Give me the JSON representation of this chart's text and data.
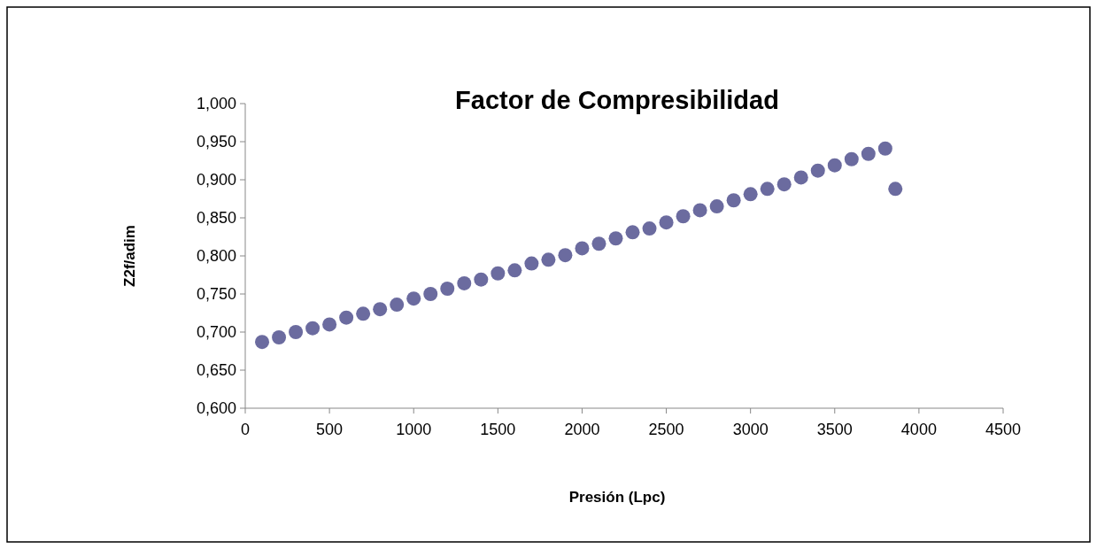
{
  "chart_data": {
    "type": "scatter",
    "title": "Factor de Compresibilidad",
    "xlabel": "Presión (Lpc)",
    "ylabel": "Z2f/adim",
    "x": [
      100,
      200,
      300,
      400,
      500,
      600,
      700,
      800,
      900,
      1000,
      1100,
      1200,
      1300,
      1400,
      1500,
      1600,
      1700,
      1800,
      1900,
      2000,
      2100,
      2200,
      2300,
      2400,
      2500,
      2600,
      2700,
      2800,
      2900,
      3000,
      3100,
      3200,
      3300,
      3400,
      3500,
      3600,
      3700,
      3800,
      3860
    ],
    "series": [
      {
        "color": "#6b6b9f",
        "values": [
          0.687,
          0.693,
          0.7,
          0.705,
          0.71,
          0.719,
          0.724,
          0.73,
          0.736,
          0.744,
          0.75,
          0.757,
          0.764,
          0.769,
          0.777,
          0.781,
          0.79,
          0.795,
          0.801,
          0.81,
          0.816,
          0.823,
          0.831,
          0.836,
          0.844,
          0.852,
          0.86,
          0.865,
          0.873,
          0.881,
          0.888,
          0.894,
          0.903,
          0.912,
          0.919,
          0.927,
          0.934,
          0.941,
          0.888
        ]
      }
    ],
    "xlim": [
      0,
      4500
    ],
    "xticks": [
      0,
      500,
      1000,
      1500,
      2000,
      2500,
      3000,
      3500,
      4000,
      4500
    ],
    "ylim": [
      0.6,
      1.0
    ],
    "yticks": [
      {
        "value": 0.6,
        "label": "0,600"
      },
      {
        "value": 0.65,
        "label": "0,650"
      },
      {
        "value": 0.7,
        "label": "0,700"
      },
      {
        "value": 0.75,
        "label": "0,750"
      },
      {
        "value": 0.8,
        "label": "0,800"
      },
      {
        "value": 0.85,
        "label": "0,850"
      },
      {
        "value": 0.9,
        "label": "0,900"
      },
      {
        "value": 0.95,
        "label": "0,950"
      },
      {
        "value": 1.0,
        "label": "1,000"
      }
    ],
    "marker": "circle",
    "grid": false
  }
}
